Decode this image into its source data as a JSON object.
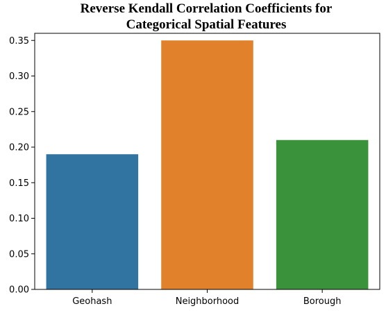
{
  "chart_data": {
    "type": "bar",
    "title_lines": [
      "Reverse Kendall Correlation Coefficients for",
      "Categorical Spatial Features"
    ],
    "xlabel": "",
    "ylabel": "",
    "categories": [
      "Geohash",
      "Neighborhood",
      "Borough"
    ],
    "values": [
      0.19,
      0.35,
      0.21
    ],
    "colors": [
      "#3274a1",
      "#e1812c",
      "#3a923a"
    ],
    "ylim": [
      0,
      0.36
    ],
    "yticks": [
      0.0,
      0.05,
      0.1,
      0.15,
      0.2,
      0.25,
      0.3,
      0.35
    ],
    "ytick_labels": [
      "0.00",
      "0.05",
      "0.10",
      "0.15",
      "0.20",
      "0.25",
      "0.30",
      "0.35"
    ],
    "grid": false,
    "legend": "none"
  }
}
